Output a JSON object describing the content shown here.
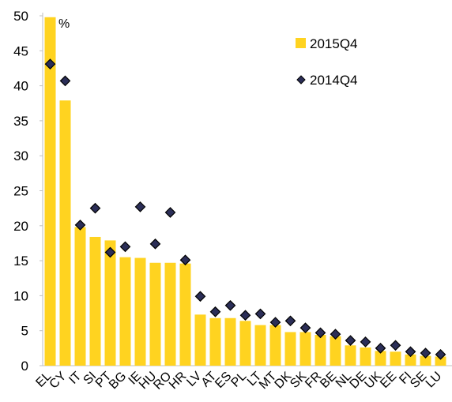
{
  "chart_data": {
    "type": "bar",
    "title": "",
    "xlabel": "",
    "ylabel": "",
    "unit_label": "%",
    "ylim": [
      0,
      50
    ],
    "yticks": [
      0,
      5,
      10,
      15,
      20,
      25,
      30,
      35,
      40,
      45,
      50
    ],
    "grid": false,
    "legend_position": "top-right",
    "categories": [
      "EL",
      "CY",
      "IT",
      "SI",
      "PT",
      "BG",
      "IE",
      "HU",
      "RO",
      "HR",
      "LV",
      "AT",
      "ES",
      "PL",
      "LT",
      "MT",
      "DK",
      "SK",
      "FR",
      "BE",
      "NL",
      "DE",
      "UK",
      "EE",
      "FI",
      "SE",
      "LU"
    ],
    "series": [
      {
        "name": "2015Q4",
        "kind": "bar",
        "color": "#FFD320",
        "values": [
          49.8,
          37.9,
          19.8,
          18.4,
          17.9,
          15.5,
          15.4,
          14.7,
          14.7,
          14.6,
          7.3,
          6.8,
          6.8,
          6.4,
          5.8,
          5.8,
          4.8,
          4.8,
          4.4,
          4.2,
          2.9,
          2.6,
          2.1,
          2.0,
          1.6,
          1.4,
          1.3
        ]
      },
      {
        "name": "2014Q4",
        "kind": "marker",
        "color": "#2B2E57",
        "values": [
          43.1,
          40.7,
          20.1,
          22.5,
          16.2,
          17.0,
          22.7,
          17.4,
          21.9,
          15.1,
          9.9,
          7.7,
          8.6,
          7.2,
          7.4,
          6.2,
          6.4,
          5.4,
          4.7,
          4.5,
          3.6,
          3.4,
          2.5,
          2.9,
          2.0,
          1.8,
          1.6
        ]
      }
    ]
  }
}
